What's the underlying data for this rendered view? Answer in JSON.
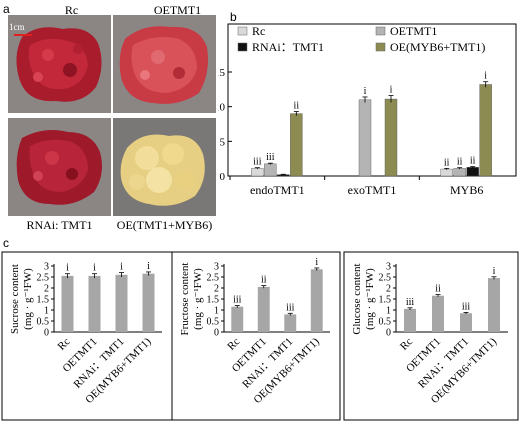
{
  "panel_a": {
    "letter": "a",
    "scale_label": "1cm",
    "photos": [
      {
        "label": "Rc",
        "tissue": "red-callus-icon"
      },
      {
        "label": "OETMT1",
        "tissue": "red-callus-icon"
      },
      {
        "label": "RNAi: TMT1",
        "tissue": "red-callus-icon"
      },
      {
        "label": "OE(TMT1+MYB6)",
        "tissue": "yellow-callus-icon"
      }
    ]
  },
  "panel_b_letter": "b",
  "panel_c_letter": "c",
  "colors": {
    "Rc": "#d9d9d9",
    "OETMT1": "#b4b4b4",
    "RNAi": "#111111",
    "OE_combo": "#8c8b52",
    "small_bar": "#a6a6a6"
  },
  "chart_data": [
    {
      "type": "bar",
      "categories": [
        "endoTMT1",
        "exoTMT1",
        "MYB6"
      ],
      "series": [
        {
          "name": "Rc",
          "values": [
            1.1,
            0,
            1.0
          ],
          "errors": [
            0.1,
            0,
            0.1
          ],
          "labels": [
            "iii",
            "",
            "ii"
          ]
        },
        {
          "name": "OETMT1",
          "values": [
            1.75,
            11.0,
            1.1
          ],
          "errors": [
            0.1,
            0.4,
            0.1
          ],
          "labels": [
            "iii",
            "i",
            "ii"
          ]
        },
        {
          "name": "RNAi：TMT1",
          "values": [
            0.2,
            0,
            1.25
          ],
          "errors": [
            0.05,
            0,
            0.1
          ],
          "labels": [
            "",
            "",
            "ii"
          ]
        },
        {
          "name": "OE(MYB6+TMT1)",
          "values": [
            9.0,
            11.1,
            13.2
          ],
          "errors": [
            0.3,
            0.5,
            0.4
          ],
          "labels": [
            "ii",
            "i",
            "i"
          ]
        }
      ],
      "ylim": [
        0,
        15
      ],
      "yticks": [
        0,
        5,
        10,
        15
      ],
      "legend": "top"
    },
    {
      "type": "bar",
      "categories": [
        "Rc",
        "OETMT1",
        "RNAi：TMT1",
        "OE(MYB6+TMT1)"
      ],
      "values": [
        2.55,
        2.55,
        2.6,
        2.65
      ],
      "errors": [
        0.1,
        0.1,
        0.1,
        0.08
      ],
      "labels": [
        "i",
        "i",
        "i",
        "i"
      ],
      "ylabel": "Sucrose  content",
      "ylabel_unit": "(mg · g⁻¹FW)",
      "ylim": [
        0,
        3
      ],
      "yticks": [
        0,
        0.5,
        1,
        1.5,
        2,
        2.5,
        3
      ]
    },
    {
      "type": "bar",
      "categories": [
        "Rc",
        "OETMT1",
        "RNAi：TMT1",
        "OE(MYB6+TMT1)"
      ],
      "values": [
        1.15,
        2.05,
        0.8,
        2.85
      ],
      "errors": [
        0.05,
        0.06,
        0.05,
        0.06
      ],
      "labels": [
        "iii",
        "ii",
        "iii",
        "i"
      ],
      "ylabel": "Fructose  content",
      "ylabel_unit": "(mg · g⁻¹FW)",
      "ylim": [
        0,
        3
      ],
      "yticks": [
        0,
        0.5,
        1,
        1.5,
        2,
        2.5,
        3
      ]
    },
    {
      "type": "bar",
      "categories": [
        "Rc",
        "OETMT1",
        "RNAi：TMT1",
        "OE(MYB6+TMT1)"
      ],
      "values": [
        1.05,
        1.65,
        0.85,
        2.45
      ],
      "errors": [
        0.05,
        0.05,
        0.04,
        0.06
      ],
      "labels": [
        "iii",
        "ii",
        "iii",
        "i"
      ],
      "ylabel": "Glucose  content",
      "ylabel_unit": "(mg · g⁻¹FW)",
      "ylim": [
        0,
        3
      ],
      "yticks": [
        0,
        0.5,
        1,
        1.5,
        2,
        2.5,
        3
      ]
    }
  ]
}
